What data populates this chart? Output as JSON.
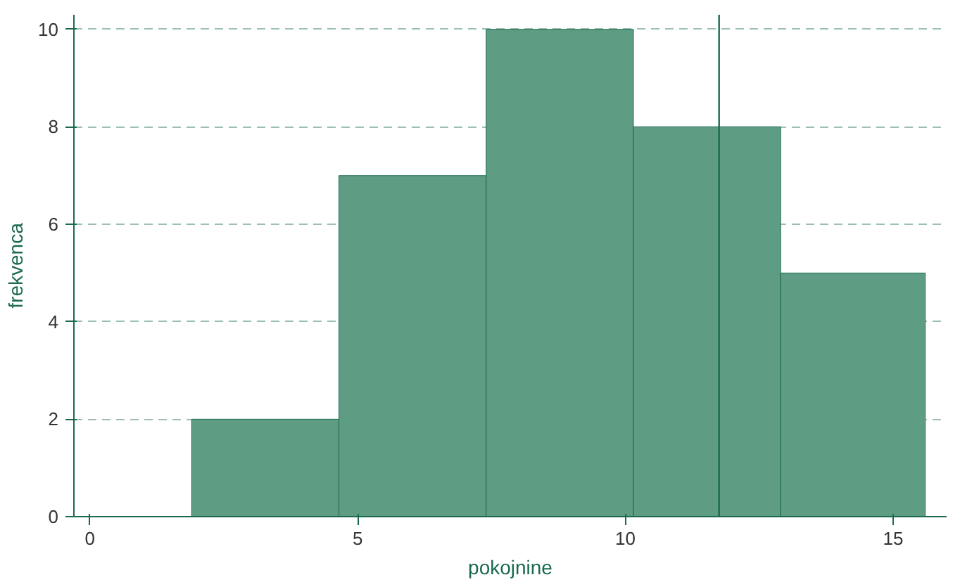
{
  "chart_data": {
    "type": "histogram",
    "xlabel": "pokojnine",
    "ylabel": "frekvenca",
    "bins": [
      1.9,
      4.65,
      7.4,
      10.15,
      12.9,
      15.6
    ],
    "values": [
      2,
      7,
      10,
      8,
      5
    ],
    "color": "#5f9c84",
    "xlim": [
      -0.3,
      16
    ],
    "xticks": [
      0,
      5,
      10,
      15
    ],
    "ylim": [
      0,
      10.3
    ],
    "yticks": [
      0,
      2,
      4,
      6,
      8,
      10
    ],
    "grid": "y",
    "ref_lines": [
      {
        "axis": "x",
        "value": 11.75,
        "color": "#1a6a50"
      }
    ]
  }
}
